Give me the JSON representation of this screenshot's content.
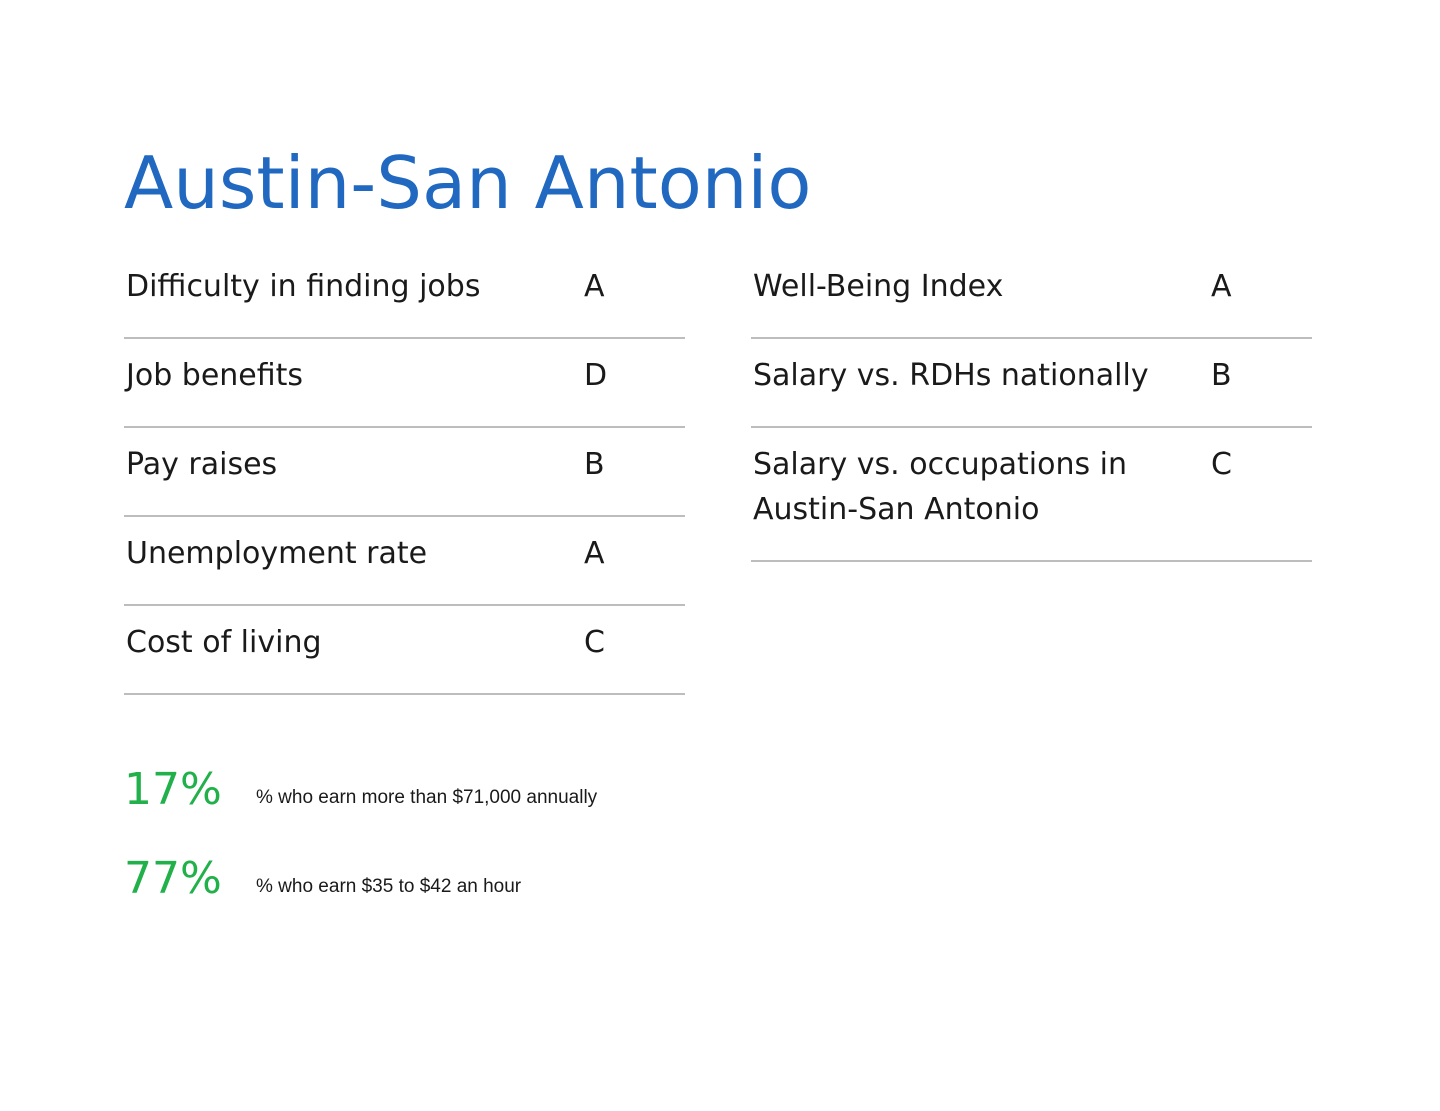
{
  "title": "Austin-San Antonio",
  "left_ratings": [
    {
      "label": "Difficulty in finding jobs",
      "grade": "A"
    },
    {
      "label": "Job benefits",
      "grade": "D"
    },
    {
      "label": "Pay raises",
      "grade": "B"
    },
    {
      "label": "Unemployment rate",
      "grade": "A"
    },
    {
      "label": "Cost of living",
      "grade": "C"
    }
  ],
  "right_ratings": [
    {
      "label": "Well-Being Index",
      "grade": "A"
    },
    {
      "label": "Salary vs. RDHs nationally",
      "grade": "B"
    },
    {
      "label": "Salary vs. occupations in Austin-San Antonio",
      "grade": "C"
    }
  ],
  "stats": [
    {
      "value": "17%",
      "description": "% who earn more than $71,000 annually"
    },
    {
      "value": "77%",
      "description": "% who earn $35 to $42 an hour"
    }
  ],
  "colors": {
    "title": "#2068c0",
    "stat_value": "#22b04b",
    "divider": "#bdbdbd",
    "text": "#1a1a1a"
  }
}
